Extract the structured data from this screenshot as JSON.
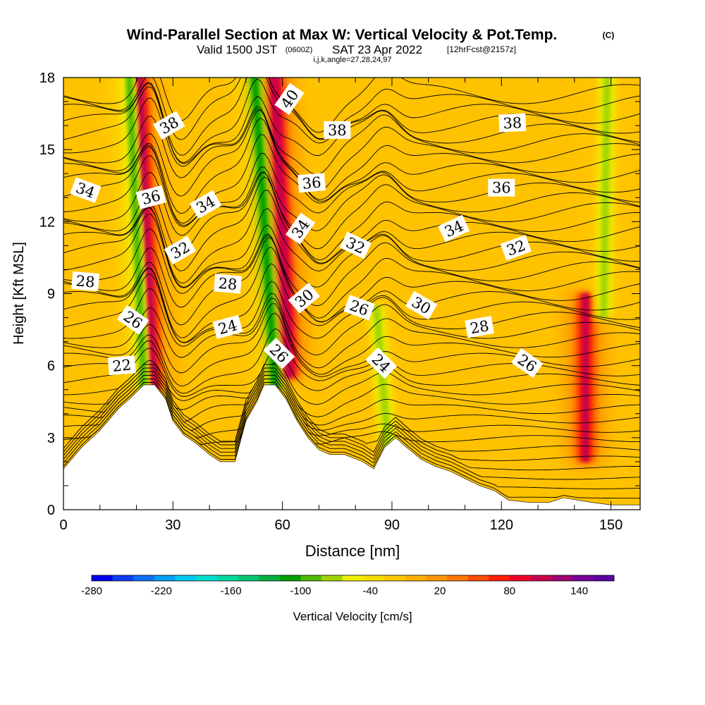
{
  "chart_data": {
    "type": "heatmap",
    "title": "Wind-Parallel Section at Max W: Vertical Velocity & Pot.Temp.",
    "title_mark": "(C)",
    "subtitle_valid": "Valid 1500 JST",
    "subtitle_z": "(0600Z)",
    "subtitle_date": "SAT 23 Apr 2022",
    "subtitle_fcst": "[12hrFcst@2157z]",
    "subtitle_ijk": "i,j,k,angle=27,28,24,97",
    "xlabel": "Distance [nm]",
    "ylabel": "Height [Kft MSL]",
    "xlim": [
      0,
      158
    ],
    "ylim": [
      0,
      18
    ],
    "x_ticks": [
      "0",
      "30",
      "60",
      "90",
      "120",
      "150"
    ],
    "y_ticks": [
      "0",
      "3",
      "6",
      "9",
      "12",
      "15",
      "18"
    ],
    "colorbar": {
      "label": "Vertical Velocity [cm/s]",
      "range": [
        -280,
        170
      ],
      "tick_labels": [
        "-280",
        "-220",
        "-160",
        "-100",
        "-40",
        "20",
        "80",
        "140"
      ],
      "colors": [
        "#0000ee",
        "#0a3cf0",
        "#0f6ef5",
        "#00a0f5",
        "#00c8f0",
        "#00e0d0",
        "#00d8a0",
        "#00c870",
        "#00b040",
        "#00a000",
        "#50bb00",
        "#a0d400",
        "#f0f000",
        "#f8dc00",
        "#ffc800",
        "#ffb000",
        "#ff9800",
        "#ff7800",
        "#ff4c00",
        "#ff1e00",
        "#ee0028",
        "#c8004c",
        "#a00070",
        "#780096",
        "#5a00a0"
      ]
    },
    "terrain_profile_kft": [
      [
        0,
        1.7
      ],
      [
        5,
        2.6
      ],
      [
        10,
        3.3
      ],
      [
        15,
        4.2
      ],
      [
        18,
        4.6
      ],
      [
        20,
        4.9
      ],
      [
        22,
        5.2
      ],
      [
        25,
        5.2
      ],
      [
        26,
        5.0
      ],
      [
        28,
        4.6
      ],
      [
        30,
        3.7
      ],
      [
        33,
        3.1
      ],
      [
        36,
        2.8
      ],
      [
        40,
        2.3
      ],
      [
        43,
        2.0
      ],
      [
        47,
        2.0
      ],
      [
        50,
        3.7
      ],
      [
        53,
        4.5
      ],
      [
        55,
        5.2
      ],
      [
        58,
        5.2
      ],
      [
        61,
        4.6
      ],
      [
        64,
        3.7
      ],
      [
        67,
        3.0
      ],
      [
        70,
        2.5
      ],
      [
        73,
        2.3
      ],
      [
        77,
        2.3
      ],
      [
        82,
        2.0
      ],
      [
        85,
        1.7
      ],
      [
        88,
        2.6
      ],
      [
        91,
        3.0
      ],
      [
        94,
        2.6
      ],
      [
        98,
        2.1
      ],
      [
        102,
        1.8
      ],
      [
        106,
        1.6
      ],
      [
        110,
        1.3
      ],
      [
        114,
        1.0
      ],
      [
        118,
        0.8
      ],
      [
        122,
        0.4
      ],
      [
        128,
        0.3
      ],
      [
        133,
        0.3
      ],
      [
        137,
        0.5
      ],
      [
        141,
        0.4
      ],
      [
        145,
        0.3
      ],
      [
        150,
        0.2
      ],
      [
        158,
        0.2
      ]
    ],
    "vertical_velocity_features": [
      {
        "x": 25,
        "z_bottom": 5,
        "z_top": 18,
        "tilt_nm_per_kft": -0.32,
        "w_cm_s": 110
      },
      {
        "x": 22,
        "z_bottom": 5,
        "z_top": 18,
        "tilt_nm_per_kft": -0.32,
        "w_cm_s": -90
      },
      {
        "x": 58,
        "z_bottom": 5,
        "z_top": 18,
        "tilt_nm_per_kft": -0.45,
        "w_cm_s": -110
      },
      {
        "x": 62,
        "z_bottom": 5.5,
        "z_top": 18,
        "tilt_nm_per_kft": -0.35,
        "w_cm_s": 115
      },
      {
        "x": 89,
        "z_bottom": 2.5,
        "z_top": 8,
        "tilt_nm_per_kft": -0.6,
        "w_cm_s": -70
      },
      {
        "x": 143,
        "z_bottom": 2,
        "z_top": 8.5,
        "tilt_nm_per_kft": 0,
        "w_cm_s": 110
      },
      {
        "x": 148,
        "z_bottom": 8,
        "z_top": 18,
        "tilt_nm_per_kft": 0.1,
        "w_cm_s": -70
      }
    ],
    "isentrope_labels": [
      {
        "label": "38",
        "x": 29,
        "z": 16.0,
        "angle": -30
      },
      {
        "label": "40",
        "x": 62,
        "z": 17.1,
        "angle": -55
      },
      {
        "label": "38",
        "x": 75,
        "z": 15.8,
        "angle": 0
      },
      {
        "label": "38",
        "x": 123,
        "z": 16.1,
        "angle": -3
      },
      {
        "label": "34",
        "x": 6,
        "z": 13.3,
        "angle": 20
      },
      {
        "label": "36",
        "x": 24,
        "z": 13.0,
        "angle": -15
      },
      {
        "label": "34",
        "x": 39,
        "z": 12.7,
        "angle": -30
      },
      {
        "label": "36",
        "x": 68,
        "z": 13.6,
        "angle": -5
      },
      {
        "label": "36",
        "x": 120,
        "z": 13.4,
        "angle": 0
      },
      {
        "label": "34",
        "x": 65,
        "z": 11.7,
        "angle": -55
      },
      {
        "label": "34",
        "x": 107,
        "z": 11.7,
        "angle": -25
      },
      {
        "label": "32",
        "x": 32,
        "z": 10.8,
        "angle": -30
      },
      {
        "label": "32",
        "x": 80,
        "z": 11.0,
        "angle": 25
      },
      {
        "label": "32",
        "x": 124,
        "z": 10.9,
        "angle": -20
      },
      {
        "label": "28",
        "x": 6,
        "z": 9.5,
        "angle": 5
      },
      {
        "label": "28",
        "x": 45,
        "z": 9.4,
        "angle": 5
      },
      {
        "label": "30",
        "x": 66,
        "z": 8.8,
        "angle": -40
      },
      {
        "label": "30",
        "x": 98,
        "z": 8.5,
        "angle": 30
      },
      {
        "label": "26",
        "x": 19,
        "z": 7.9,
        "angle": 35
      },
      {
        "label": "24",
        "x": 45,
        "z": 7.6,
        "angle": -15
      },
      {
        "label": "26",
        "x": 81,
        "z": 8.4,
        "angle": 20
      },
      {
        "label": "28",
        "x": 114,
        "z": 7.6,
        "angle": -10
      },
      {
        "label": "22",
        "x": 16,
        "z": 6.0,
        "angle": -5
      },
      {
        "label": "26",
        "x": 59,
        "z": 6.5,
        "angle": 45
      },
      {
        "label": "24",
        "x": 87,
        "z": 6.1,
        "angle": 45
      },
      {
        "label": "26",
        "x": 127,
        "z": 6.1,
        "angle": 35
      }
    ]
  }
}
